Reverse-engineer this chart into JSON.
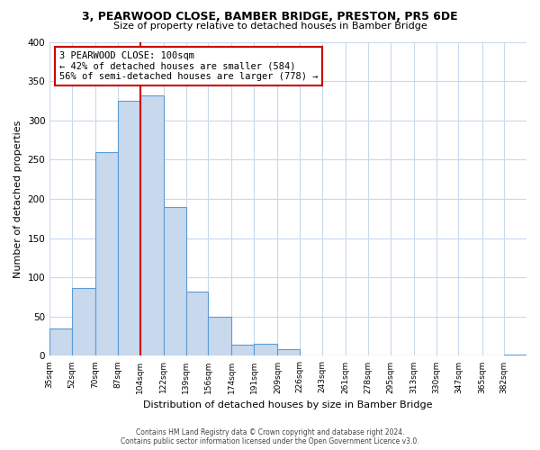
{
  "title": "3, PEARWOOD CLOSE, BAMBER BRIDGE, PRESTON, PR5 6DE",
  "subtitle": "Size of property relative to detached houses in Bamber Bridge",
  "xlabel": "Distribution of detached houses by size in Bamber Bridge",
  "ylabel": "Number of detached properties",
  "bin_labels": [
    "35sqm",
    "52sqm",
    "70sqm",
    "87sqm",
    "104sqm",
    "122sqm",
    "139sqm",
    "156sqm",
    "174sqm",
    "191sqm",
    "209sqm",
    "226sqm",
    "243sqm",
    "261sqm",
    "278sqm",
    "295sqm",
    "313sqm",
    "330sqm",
    "347sqm",
    "365sqm",
    "382sqm"
  ],
  "bar_values": [
    35,
    87,
    260,
    325,
    332,
    190,
    82,
    50,
    14,
    15,
    9,
    1,
    0,
    0,
    0,
    0,
    0,
    0,
    0,
    0,
    2
  ],
  "bar_color": "#c8d9ed",
  "bar_edge_color": "#5b9bd5",
  "ylim": [
    0,
    400
  ],
  "yticks": [
    0,
    50,
    100,
    150,
    200,
    250,
    300,
    350,
    400
  ],
  "property_label": "3 PEARWOOD CLOSE: 100sqm",
  "annotation_line1": "← 42% of detached houses are smaller (584)",
  "annotation_line2": "56% of semi-detached houses are larger (778) →",
  "annotation_box_color": "#ffffff",
  "annotation_box_edge_color": "#cc0000",
  "vline_color": "#cc0000",
  "vline_x": 104,
  "background_color": "#ffffff",
  "grid_color": "#c8d9ed",
  "footer_line1": "Contains HM Land Registry data © Crown copyright and database right 2024.",
  "footer_line2": "Contains public sector information licensed under the Open Government Licence v3.0.",
  "bin_edges": [
    35,
    52,
    70,
    87,
    104,
    122,
    139,
    156,
    174,
    191,
    209,
    226,
    243,
    261,
    278,
    295,
    313,
    330,
    347,
    365,
    382,
    399
  ]
}
